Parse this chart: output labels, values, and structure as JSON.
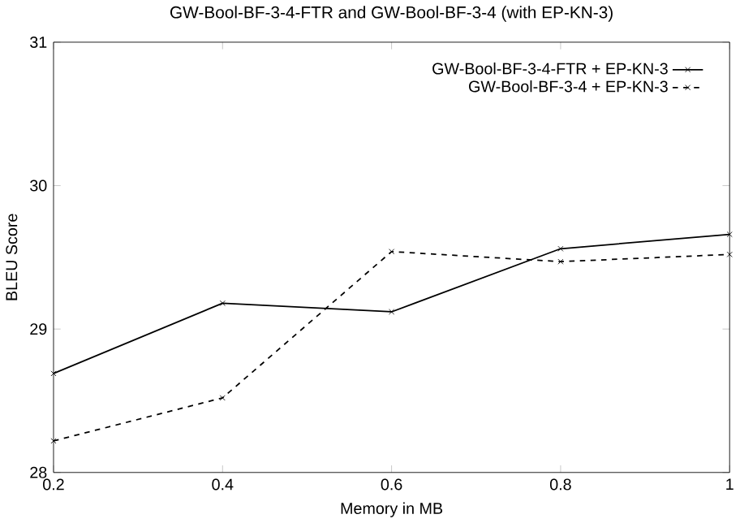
{
  "chart_data": {
    "type": "line",
    "title": "GW-Bool-BF-3-4-FTR and GW-Bool-BF-3-4 (with EP-KN-3)",
    "xlabel": "Memory in MB",
    "ylabel": "BLEU Score",
    "x": [
      0.2,
      0.4,
      0.6,
      0.8,
      1
    ],
    "series": [
      {
        "name": "GW-Bool-BF-3-4-FTR + EP-KN-3",
        "color": "#000000",
        "marker": "cross",
        "line_style": "solid",
        "values": [
          28.69,
          29.18,
          29.12,
          29.56,
          29.66
        ]
      },
      {
        "name": "GW-Bool-BF-3-4 + EP-KN-3",
        "color": "#000000",
        "marker": "cross",
        "line_style": "dashed",
        "values": [
          28.22,
          28.52,
          29.54,
          29.47,
          29.52
        ]
      }
    ],
    "xlim": [
      0.2,
      1
    ],
    "ylim": [
      28,
      31
    ],
    "xticks": [
      0.2,
      0.4,
      0.6,
      0.8,
      1
    ],
    "yticks": [
      28,
      29,
      30,
      31
    ],
    "grid": false,
    "legend": "top right"
  }
}
